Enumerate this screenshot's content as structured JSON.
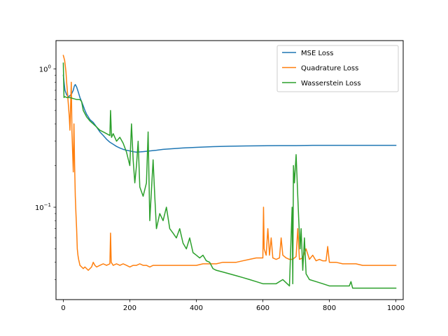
{
  "chart_data": {
    "type": "line",
    "title": "",
    "xlabel": "",
    "ylabel": "",
    "xlim": [
      -22,
      1022
    ],
    "ylim": [
      0.0215,
      1.6
    ],
    "yscale": "log",
    "grid": false,
    "legend_position": "top-right",
    "x_ticks": [
      {
        "value": 0,
        "label": "0"
      },
      {
        "value": 200,
        "label": "200"
      },
      {
        "value": 400,
        "label": "400"
      },
      {
        "value": 600,
        "label": "600"
      },
      {
        "value": 800,
        "label": "800"
      },
      {
        "value": 1000,
        "label": "1000"
      }
    ],
    "y_ticks": [
      {
        "value": 0.1,
        "base": "10",
        "exp": "−1"
      },
      {
        "value": 1,
        "base": "10",
        "exp": "0"
      }
    ],
    "series": [
      {
        "name": "MSE Loss",
        "color": "#1f77b4",
        "x": [
          0,
          5,
          10,
          15,
          20,
          25,
          30,
          33,
          36,
          40,
          45,
          50,
          55,
          60,
          65,
          70,
          75,
          80,
          90,
          100,
          110,
          120,
          130,
          140,
          150,
          160,
          170,
          180,
          190,
          200,
          210,
          220,
          240,
          260,
          280,
          300,
          330,
          360,
          400,
          450,
          500,
          550,
          600,
          650,
          700,
          750,
          800,
          850,
          900,
          950,
          1000
        ],
        "y": [
          0.9,
          0.7,
          0.65,
          0.63,
          0.64,
          0.66,
          0.7,
          0.75,
          0.77,
          0.74,
          0.68,
          0.62,
          0.58,
          0.54,
          0.5,
          0.47,
          0.45,
          0.43,
          0.41,
          0.38,
          0.35,
          0.33,
          0.31,
          0.295,
          0.285,
          0.275,
          0.268,
          0.262,
          0.258,
          0.255,
          0.252,
          0.25,
          0.252,
          0.255,
          0.258,
          0.262,
          0.265,
          0.268,
          0.271,
          0.274,
          0.276,
          0.277,
          0.278,
          0.279,
          0.279,
          0.28,
          0.28,
          0.28,
          0.28,
          0.28,
          0.28
        ]
      },
      {
        "name": "Quadrature Loss",
        "color": "#ff7f0e",
        "x": [
          0,
          2,
          4,
          6,
          8,
          10,
          12,
          14,
          16,
          18,
          20,
          22,
          24,
          26,
          28,
          30,
          32,
          34,
          36,
          38,
          40,
          42,
          44,
          46,
          48,
          50,
          55,
          60,
          65,
          70,
          75,
          80,
          85,
          90,
          95,
          100,
          110,
          120,
          130,
          140,
          142,
          144,
          150,
          160,
          170,
          180,
          190,
          200,
          210,
          220,
          230,
          240,
          250,
          260,
          270,
          280,
          300,
          320,
          340,
          360,
          380,
          400,
          420,
          440,
          460,
          480,
          500,
          520,
          540,
          560,
          580,
          600,
          602,
          604,
          610,
          615,
          620,
          625,
          630,
          640,
          650,
          655,
          660,
          670,
          680,
          690,
          695,
          700,
          705,
          710,
          720,
          730,
          740,
          750,
          760,
          770,
          780,
          790,
          795,
          800,
          820,
          840,
          860,
          880,
          900,
          920,
          940,
          960,
          980,
          1000
        ],
        "y": [
          1.25,
          1.2,
          1.15,
          1.05,
          0.95,
          0.8,
          0.7,
          0.6,
          0.52,
          0.45,
          0.36,
          0.55,
          0.8,
          0.35,
          0.25,
          0.18,
          0.4,
          0.2,
          0.12,
          0.09,
          0.07,
          0.05,
          0.045,
          0.042,
          0.04,
          0.038,
          0.037,
          0.036,
          0.037,
          0.036,
          0.035,
          0.036,
          0.037,
          0.04,
          0.038,
          0.037,
          0.038,
          0.039,
          0.038,
          0.039,
          0.065,
          0.04,
          0.038,
          0.039,
          0.038,
          0.039,
          0.038,
          0.037,
          0.038,
          0.038,
          0.039,
          0.038,
          0.038,
          0.037,
          0.038,
          0.038,
          0.038,
          0.038,
          0.038,
          0.038,
          0.038,
          0.038,
          0.039,
          0.039,
          0.039,
          0.04,
          0.04,
          0.04,
          0.041,
          0.042,
          0.043,
          0.043,
          0.1,
          0.05,
          0.045,
          0.07,
          0.045,
          0.06,
          0.043,
          0.042,
          0.043,
          0.06,
          0.045,
          0.043,
          0.042,
          0.042,
          0.043,
          0.044,
          0.07,
          0.042,
          0.043,
          0.05,
          0.042,
          0.045,
          0.041,
          0.042,
          0.041,
          0.041,
          0.052,
          0.04,
          0.04,
          0.039,
          0.039,
          0.039,
          0.038,
          0.038,
          0.038,
          0.038,
          0.038,
          0.038
        ]
      },
      {
        "name": "Wasserstein Loss",
        "color": "#2ca02c",
        "x": [
          0,
          2,
          5,
          10,
          20,
          30,
          40,
          50,
          55,
          60,
          70,
          80,
          90,
          100,
          110,
          120,
          130,
          140,
          142,
          145,
          150,
          160,
          170,
          180,
          190,
          200,
          205,
          210,
          215,
          220,
          225,
          230,
          240,
          250,
          255,
          260,
          270,
          275,
          280,
          290,
          300,
          310,
          320,
          330,
          340,
          350,
          360,
          370,
          380,
          390,
          400,
          410,
          420,
          430,
          440,
          450,
          460,
          480,
          500,
          520,
          540,
          560,
          580,
          600,
          620,
          640,
          660,
          680,
          688,
          690,
          692,
          695,
          700,
          705,
          708,
          712,
          715,
          720,
          725,
          730,
          740,
          760,
          780,
          800,
          820,
          840,
          860,
          865,
          870,
          880,
          900,
          950,
          1000
        ],
        "y": [
          1.1,
          0.62,
          0.63,
          0.62,
          0.62,
          0.61,
          0.6,
          0.6,
          0.58,
          0.5,
          0.45,
          0.42,
          0.4,
          0.38,
          0.36,
          0.35,
          0.34,
          0.33,
          0.5,
          0.32,
          0.34,
          0.3,
          0.32,
          0.29,
          0.25,
          0.2,
          0.4,
          0.22,
          0.15,
          0.2,
          0.3,
          0.14,
          0.12,
          0.15,
          0.35,
          0.08,
          0.22,
          0.12,
          0.07,
          0.09,
          0.08,
          0.1,
          0.07,
          0.065,
          0.06,
          0.07,
          0.055,
          0.05,
          0.06,
          0.047,
          0.045,
          0.043,
          0.045,
          0.041,
          0.04,
          0.036,
          0.035,
          0.034,
          0.033,
          0.032,
          0.031,
          0.03,
          0.029,
          0.028,
          0.028,
          0.028,
          0.03,
          0.027,
          0.1,
          0.028,
          0.2,
          0.15,
          0.24,
          0.12,
          0.08,
          0.05,
          0.07,
          0.035,
          0.06,
          0.033,
          0.03,
          0.029,
          0.028,
          0.027,
          0.027,
          0.027,
          0.027,
          0.029,
          0.026,
          0.026,
          0.026,
          0.026,
          0.026
        ]
      }
    ]
  }
}
